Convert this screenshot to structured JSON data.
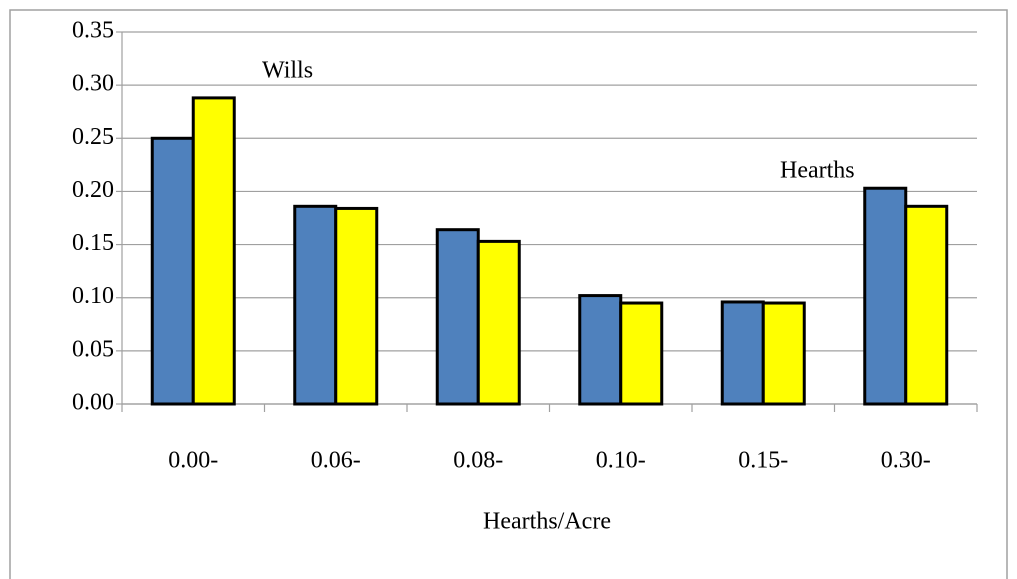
{
  "chart_data": {
    "type": "bar",
    "x_label": "Hearths/Acre",
    "categories": [
      "0.00-",
      "0.06-",
      "0.08-",
      "0.10-",
      "0.15-",
      "0.30-"
    ],
    "series": [
      {
        "name": "Hearths",
        "color": "#4f81bd",
        "values": [
          0.25,
          0.186,
          0.164,
          0.102,
          0.096,
          0.203
        ]
      },
      {
        "name": "Wills",
        "color": "#ffff00",
        "values": [
          0.288,
          0.184,
          0.153,
          0.095,
          0.095,
          0.186
        ]
      }
    ],
    "ylim": [
      0,
      0.35
    ],
    "yticks": [
      {
        "value": 0,
        "label": "0.00"
      },
      {
        "value": 0.05,
        "label": "0.05"
      },
      {
        "value": 0.1,
        "label": "0.10"
      },
      {
        "value": 0.15,
        "label": "0.15"
      },
      {
        "value": 0.2,
        "label": "0.20"
      },
      {
        "value": 0.25,
        "label": "0.25"
      },
      {
        "value": 0.3,
        "label": "0.30"
      },
      {
        "value": 0.35,
        "label": "0.35"
      }
    ],
    "grid": true
  }
}
